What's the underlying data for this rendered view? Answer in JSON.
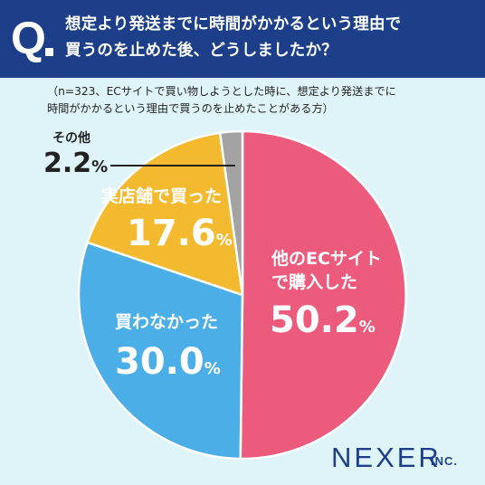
{
  "header": {
    "q_label": "Q",
    "question": "想定より発送までに時間がかかるという理由で\n買うのを止めた後、どうしましたか？"
  },
  "note": "（n=323、ECサイトで買い物しようとした時に、想定より発送までに\n時間がかかるという理由で買うのを止めたことがある方）",
  "chart_data": {
    "type": "pie",
    "title": "想定より発送までに時間がかかるという理由で買うのを止めた後、どうしましたか？",
    "slices": [
      {
        "label": "他のECサイトで購入した",
        "value": 50.2,
        "color": "#ec5a7c"
      },
      {
        "label": "買わなかった",
        "value": 30.0,
        "color": "#4caee6"
      },
      {
        "label": "実店舗で買った",
        "value": 17.6,
        "color": "#f3b92f"
      },
      {
        "label": "その他",
        "value": 2.2,
        "color": "#a3a3a3"
      }
    ],
    "unit": "%",
    "start": "12 o'clock",
    "direction": "clockwise"
  },
  "labels": {
    "s0_cat": "他のECサイト\nで購入した",
    "s0_num": "50.2",
    "s1_cat": "買わなかった",
    "s1_num": "30.0",
    "s2_cat": "実店舗で買った",
    "s2_num": "17.6",
    "s3_cat": "その他",
    "s3_num": "2.2",
    "unit": "%"
  },
  "logo": {
    "main": "NEXER",
    "suffix": "INC."
  }
}
